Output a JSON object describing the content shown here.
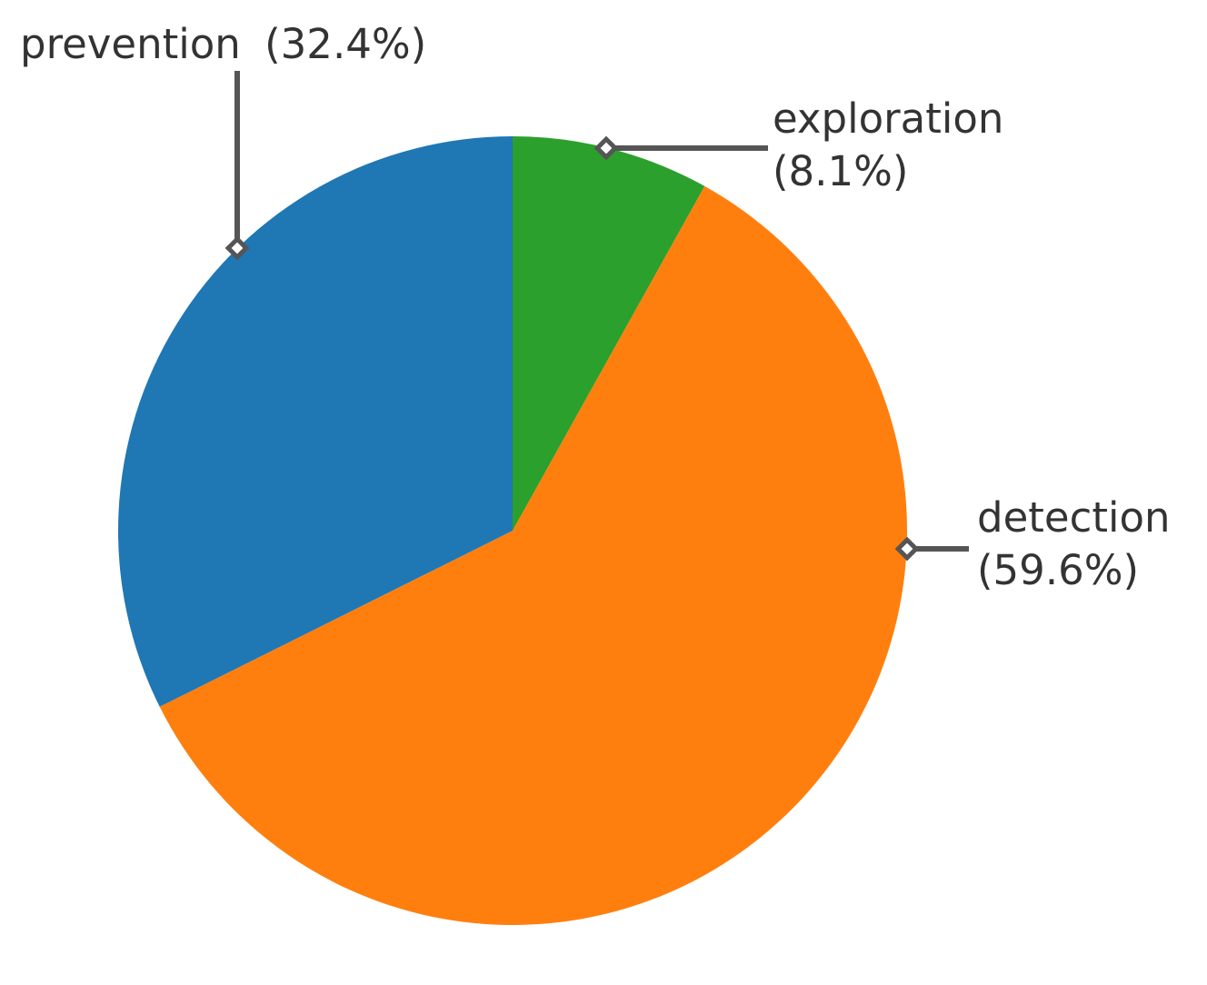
{
  "chart_data": {
    "type": "pie",
    "title": "",
    "start_angle_deg": 90,
    "direction": "clockwise",
    "slices": [
      {
        "label": "exploration",
        "value": 8.1,
        "pct_label": "(8.1%)",
        "color": "#2ca02c"
      },
      {
        "label": "detection",
        "value": 59.6,
        "pct_label": "(59.6%)",
        "color": "#ff7f0e"
      },
      {
        "label": "prevention",
        "value": 32.4,
        "pct_label": "(32.4%)",
        "color": "#1f77b4"
      }
    ],
    "legend": "none"
  }
}
